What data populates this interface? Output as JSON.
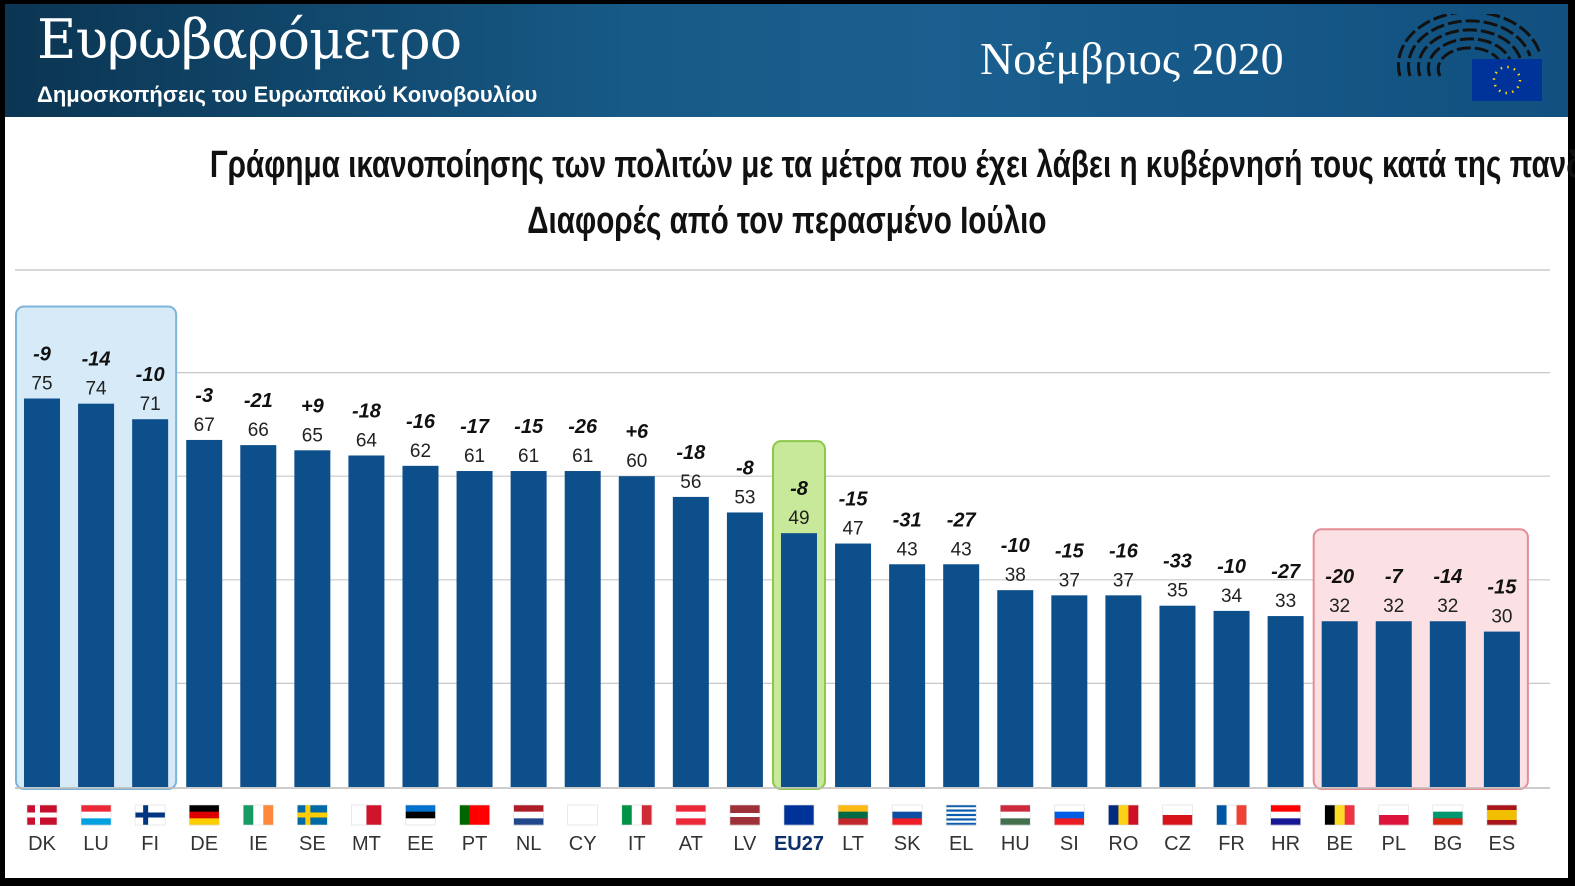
{
  "header": {
    "brand": "Ευρωβαρόμετρο",
    "subtitle": "Δημοσκοπήσεις του Ευρωπαϊκού Κοινοβουλίου",
    "date": "Νοέμβριος 2020",
    "logo": "european-parliament-logo"
  },
  "chart_data": {
    "type": "bar",
    "title": "Γράφημα ικανοποίησης των πολιτών με τα μέτρα που έχει λάβει η κυβέρνησή τους κατά της πανδημίας",
    "subtitle": "Διαφορές από τον περασμένο Ιούλιο",
    "categories": [
      "DK",
      "LU",
      "FI",
      "DE",
      "IE",
      "SE",
      "MT",
      "EE",
      "PT",
      "NL",
      "CY",
      "IT",
      "AT",
      "LV",
      "EU27",
      "LT",
      "SK",
      "EL",
      "HU",
      "SI",
      "RO",
      "CZ",
      "FR",
      "HR",
      "BE",
      "PL",
      "BG",
      "ES"
    ],
    "values": [
      75,
      74,
      71,
      67,
      66,
      65,
      64,
      62,
      61,
      61,
      61,
      60,
      56,
      53,
      49,
      47,
      43,
      43,
      38,
      37,
      37,
      35,
      34,
      33,
      32,
      32,
      32,
      30
    ],
    "changes": [
      "-9",
      "-14",
      "-10",
      "-3",
      "-21",
      "+9",
      "-18",
      "-16",
      "-17",
      "-15",
      "-26",
      "+6",
      "-18",
      "-8",
      "-8",
      "-15",
      "-31",
      "-27",
      "-10",
      "-15",
      "-16",
      "-33",
      "-10",
      "-27",
      "-20",
      "-7",
      "-14",
      "-15"
    ],
    "ylim": [
      0,
      100
    ],
    "grid": true,
    "bar_color": "#0d4f8b",
    "highlight_groups": [
      {
        "categories": [
          "DK",
          "LU",
          "FI"
        ],
        "color": "#d6eaf8"
      },
      {
        "categories": [
          "EU27"
        ],
        "color": "#c8e89a"
      },
      {
        "categories": [
          "BE",
          "PL",
          "BG",
          "ES"
        ],
        "color": "#fbe1e3"
      }
    ]
  },
  "flags": {
    "DK": {
      "type": "cross",
      "colors": [
        "#c8102e",
        "#ffffff"
      ]
    },
    "LU": {
      "type": "h",
      "colors": [
        "#ed2939",
        "#ffffff",
        "#00a1de"
      ]
    },
    "FI": {
      "type": "cross",
      "colors": [
        "#ffffff",
        "#003580"
      ]
    },
    "DE": {
      "type": "h",
      "colors": [
        "#000000",
        "#dd0000",
        "#ffce00"
      ]
    },
    "IE": {
      "type": "v",
      "colors": [
        "#169b62",
        "#ffffff",
        "#ff883e"
      ]
    },
    "SE": {
      "type": "cross",
      "colors": [
        "#006aa7",
        "#fecc00"
      ]
    },
    "MT": {
      "type": "v",
      "colors": [
        "#ffffff",
        "#cf142b"
      ]
    },
    "EE": {
      "type": "h",
      "colors": [
        "#0072ce",
        "#000000",
        "#ffffff"
      ]
    },
    "PT": {
      "type": "v",
      "colors": [
        "#006600",
        "#ff0000",
        "#ff0000"
      ]
    },
    "NL": {
      "type": "h",
      "colors": [
        "#ae1c28",
        "#ffffff",
        "#21468b"
      ]
    },
    "CY": {
      "type": "h",
      "colors": [
        "#ffffff"
      ]
    },
    "IT": {
      "type": "v",
      "colors": [
        "#009246",
        "#ffffff",
        "#ce2b37"
      ]
    },
    "AT": {
      "type": "h",
      "colors": [
        "#ed2939",
        "#ffffff",
        "#ed2939"
      ]
    },
    "LV": {
      "type": "h",
      "colors": [
        "#9e3039",
        "#9e3039",
        "#ffffff",
        "#9e3039",
        "#9e3039"
      ]
    },
    "EU27": {
      "type": "h",
      "colors": [
        "#003399"
      ]
    },
    "LT": {
      "type": "h",
      "colors": [
        "#fdb913",
        "#006a44",
        "#c1272d"
      ]
    },
    "SK": {
      "type": "h",
      "colors": [
        "#ffffff",
        "#0b4ea2",
        "#ee1c25"
      ]
    },
    "EL": {
      "type": "h",
      "colors": [
        "#0d5eaf",
        "#ffffff",
        "#0d5eaf",
        "#ffffff",
        "#0d5eaf",
        "#ffffff",
        "#0d5eaf",
        "#ffffff",
        "#0d5eaf"
      ]
    },
    "HU": {
      "type": "h",
      "colors": [
        "#cd2a3e",
        "#ffffff",
        "#436f4d"
      ]
    },
    "SI": {
      "type": "h",
      "colors": [
        "#ffffff",
        "#005ce5",
        "#ed1c24"
      ]
    },
    "RO": {
      "type": "v",
      "colors": [
        "#002b7f",
        "#fcd116",
        "#ce1126"
      ]
    },
    "CZ": {
      "type": "h",
      "colors": [
        "#ffffff",
        "#d7141a"
      ]
    },
    "FR": {
      "type": "v",
      "colors": [
        "#0055a4",
        "#ffffff",
        "#ef4135"
      ]
    },
    "HR": {
      "type": "h",
      "colors": [
        "#ff0000",
        "#ffffff",
        "#171796"
      ]
    },
    "BE": {
      "type": "v",
      "colors": [
        "#000000",
        "#fdda24",
        "#ef3340"
      ]
    },
    "PL": {
      "type": "h",
      "colors": [
        "#ffffff",
        "#dc143c"
      ]
    },
    "BG": {
      "type": "h",
      "colors": [
        "#ffffff",
        "#00966e",
        "#d62612"
      ]
    },
    "ES": {
      "type": "h",
      "colors": [
        "#aa151b",
        "#f1bf00",
        "#f1bf00",
        "#aa151b"
      ]
    }
  }
}
